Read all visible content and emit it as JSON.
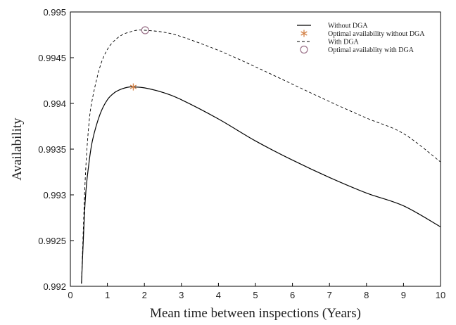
{
  "chart_data": {
    "type": "line",
    "xlabel": "Mean time between inspections (Years)",
    "ylabel": "Availability",
    "xlim": [
      0,
      10
    ],
    "ylim": [
      0.992,
      0.995
    ],
    "xticks": [
      0,
      1,
      2,
      3,
      4,
      5,
      6,
      7,
      8,
      9,
      10
    ],
    "yticks": [
      0.992,
      0.9925,
      0.993,
      0.9935,
      0.994,
      0.9945,
      0.995
    ],
    "ytick_labels": [
      "0.992",
      "0.9925",
      "0.993",
      "0.9935",
      "0.994",
      "0.9945",
      "0.995"
    ],
    "grid": false,
    "legend_position": "top-right",
    "series": [
      {
        "name": "Without DGA",
        "style": "solid",
        "color": "#000000",
        "x": [
          0.3,
          0.4,
          0.5,
          0.6,
          0.8,
          1.0,
          1.2,
          1.4,
          1.6,
          1.7,
          2.0,
          2.5,
          3.0,
          4.0,
          5.0,
          6.0,
          7.0,
          8.0,
          9.0,
          10.0
        ],
        "y": [
          0.99203,
          0.99293,
          0.99334,
          0.9936,
          0.99388,
          0.99404,
          0.99412,
          0.99416,
          0.99418,
          0.99418,
          0.99417,
          0.99412,
          0.99404,
          0.99383,
          0.99359,
          0.99338,
          0.99319,
          0.99302,
          0.99288,
          0.99265
        ]
      },
      {
        "name": "With DGA",
        "style": "dashed",
        "color": "#000000",
        "x": [
          0.3,
          0.4,
          0.5,
          0.6,
          0.8,
          1.0,
          1.2,
          1.4,
          1.6,
          1.8,
          2.0,
          2.5,
          3.0,
          4.0,
          5.0,
          6.0,
          7.0,
          8.0,
          9.0,
          10.0
        ],
        "y": [
          0.99203,
          0.99316,
          0.99377,
          0.99406,
          0.9944,
          0.99459,
          0.99469,
          0.99475,
          0.99478,
          0.9948,
          0.9948,
          0.99478,
          0.99473,
          0.99458,
          0.9944,
          0.99421,
          0.99402,
          0.99384,
          0.99367,
          0.99336
        ]
      }
    ],
    "markers": [
      {
        "name": "Optimal availability without DGA",
        "symbol": "asterisk",
        "color": "#d4844a",
        "x": 1.7,
        "y": 0.99418
      },
      {
        "name": "Optimal availablity with DGA",
        "symbol": "circle",
        "color": "#9a7088",
        "x": 2.02,
        "y": 0.9948
      }
    ]
  }
}
